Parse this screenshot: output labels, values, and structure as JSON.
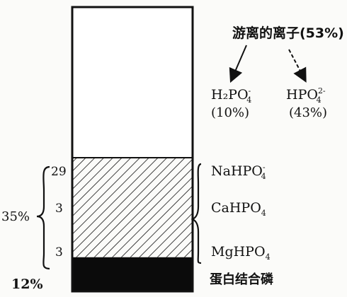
{
  "free_ions": {
    "label": "游离的离子(53%)",
    "ions": [
      {
        "formula_main": "H₂PO",
        "formula_sup": "-",
        "formula_sub": "4",
        "percent": "(10%)"
      },
      {
        "formula_main": "HPO",
        "formula_sup": "2-",
        "formula_sub": "4",
        "percent": "(43%)"
      }
    ]
  },
  "bound_group": {
    "total_label": "35%",
    "components": [
      {
        "value": "29",
        "formula_main": "NaHPO",
        "formula_sup": "-",
        "formula_sub": "4"
      },
      {
        "value": "3",
        "formula_main": "CaHPO",
        "formula_sup": "",
        "formula_sub": "4"
      },
      {
        "value": "3",
        "formula_main": "MgHPO",
        "formula_sup": "",
        "formula_sub": "4"
      }
    ]
  },
  "protein_bound": {
    "percent": "12%",
    "label": "蛋白结合磷"
  },
  "bar_fractions": {
    "free": 0.53,
    "bound": 0.35,
    "protein": 0.12
  }
}
